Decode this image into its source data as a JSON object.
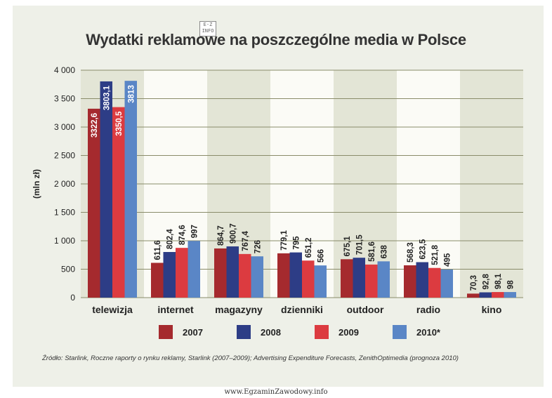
{
  "chart_data": {
    "type": "bar",
    "title": "Wydatki reklamowe na poszczególne media w Polsce",
    "ylabel": "(mln zł)",
    "xlabel": "",
    "ylim": [
      0,
      4000
    ],
    "yticks": [
      "0",
      "500",
      "1 000",
      "1 500",
      "2 000",
      "2 500",
      "3 000",
      "3 500",
      "4 000"
    ],
    "ytick_values": [
      0,
      500,
      1000,
      1500,
      2000,
      2500,
      3000,
      3500,
      4000
    ],
    "grid": true,
    "legend_position": "bottom",
    "categories": [
      "telewizja",
      "internet",
      "magazyny",
      "dzienniki",
      "outdoor",
      "radio",
      "kino"
    ],
    "series": [
      {
        "name": "2007",
        "color": "#a52a2e",
        "values": [
          3322.6,
          611.6,
          864.7,
          779.1,
          675.1,
          568.3,
          70.3
        ],
        "labels": [
          "3322,6",
          "611,6",
          "864,7",
          "779,1",
          "675,1",
          "568,3",
          "70,3"
        ]
      },
      {
        "name": "2008",
        "color": "#2d3d86",
        "values": [
          3803.1,
          802.4,
          900.7,
          795,
          701.5,
          623.5,
          92.8
        ],
        "labels": [
          "3803,1",
          "802,4",
          "900,7",
          "795",
          "701,5",
          "623,5",
          "92,8"
        ]
      },
      {
        "name": "2009",
        "color": "#dc3b40",
        "values": [
          3350.5,
          874.6,
          767.4,
          651.2,
          581.6,
          521.8,
          98.1
        ],
        "labels": [
          "3350,5",
          "874,6",
          "767,4",
          "651,2",
          "581,6",
          "521,8",
          "98,1"
        ]
      },
      {
        "name": "2010*",
        "color": "#5a86c6",
        "values": [
          3813,
          997,
          726,
          566,
          638,
          495,
          98
        ],
        "labels": [
          "3813",
          "997",
          "726",
          "566",
          "638",
          "495",
          "98"
        ]
      }
    ]
  },
  "source_note": "Źródło: Starlink, Roczne raporty o rynku reklamy, Starlink (2007–2009); Advertising Expenditure Forecasts, ZenithOptimedia (prognoza 2010)",
  "watermark": "www.EgzaminZawodowy.info",
  "logo_text": "E-Z INFO"
}
